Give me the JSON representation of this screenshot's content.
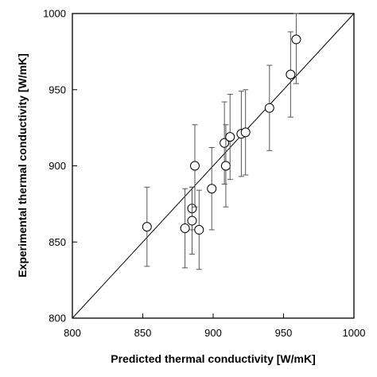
{
  "chart_data": {
    "type": "scatter",
    "xlabel": "Predicted thermal conductivity [W/mK]",
    "ylabel": "Experimental thermal conductivity [W/mK]",
    "xlim": [
      800,
      1000
    ],
    "ylim": [
      800,
      1000
    ],
    "xticks": [
      "800",
      "850",
      "900",
      "950",
      "1000"
    ],
    "yticks": [
      "800",
      "850",
      "900",
      "950",
      "1000"
    ],
    "grid": false,
    "legend": "none",
    "reference_line": {
      "type": "y = x",
      "from": [
        800,
        800
      ],
      "to": [
        1000,
        1000
      ]
    },
    "marker": "open-circle",
    "points": [
      {
        "x": 853,
        "y": 860,
        "y_err": 26
      },
      {
        "x": 880,
        "y": 859,
        "y_err": 26
      },
      {
        "x": 885,
        "y": 872,
        "y_err": 14
      },
      {
        "x": 885,
        "y": 864,
        "y_err": 22
      },
      {
        "x": 887,
        "y": 900,
        "y_err": 27
      },
      {
        "x": 890,
        "y": 858,
        "y_err": 26
      },
      {
        "x": 899,
        "y": 885,
        "y_err": 27
      },
      {
        "x": 908,
        "y": 915,
        "y_err": 27
      },
      {
        "x": 909,
        "y": 900,
        "y_err": 27
      },
      {
        "x": 912,
        "y": 919,
        "y_err": 28
      },
      {
        "x": 920,
        "y": 921,
        "y_err": 28
      },
      {
        "x": 923,
        "y": 922,
        "y_err": 28
      },
      {
        "x": 940,
        "y": 938,
        "y_err": 28
      },
      {
        "x": 955,
        "y": 960,
        "y_err": 28
      },
      {
        "x": 959,
        "y": 983,
        "y_err": 29
      }
    ]
  }
}
